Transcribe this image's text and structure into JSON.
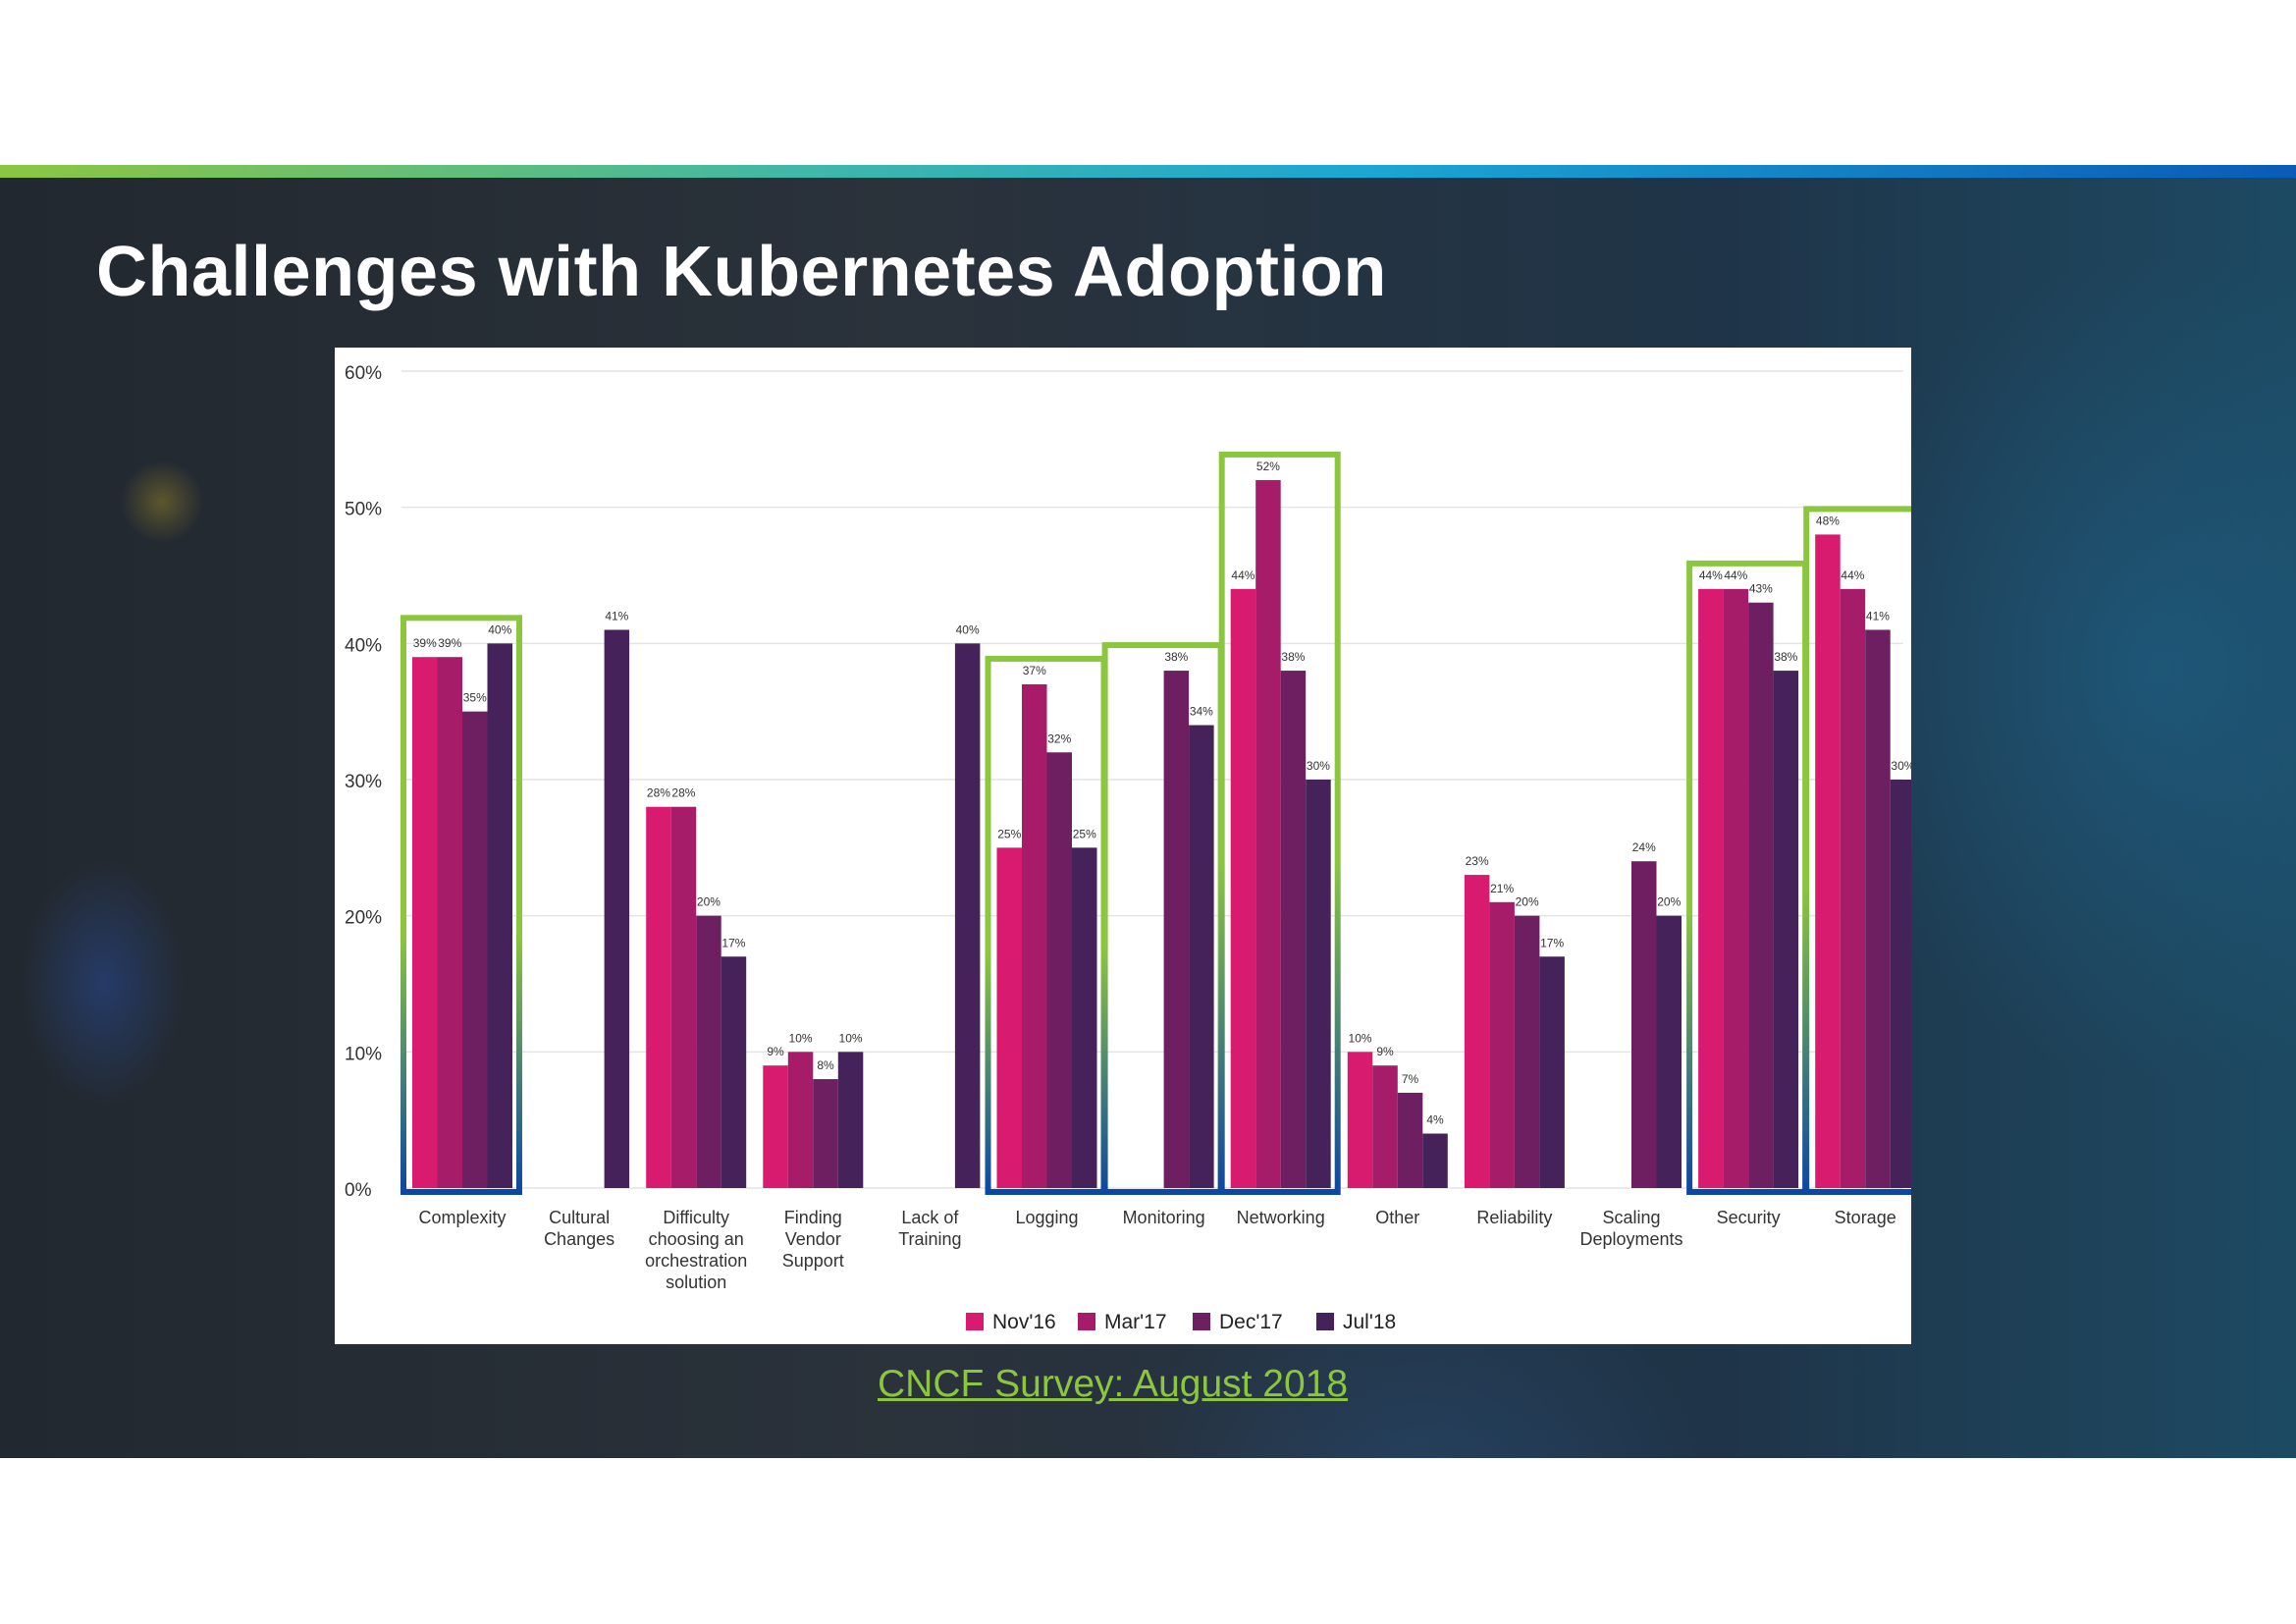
{
  "slide": {
    "title": "Challenges with Kubernetes Adoption",
    "source_link": "CNCF Survey: August 2018"
  },
  "colors": {
    "series": [
      "#d81b6e",
      "#a61c68",
      "#6d1f62",
      "#45225a"
    ],
    "highlight_green": "#8cc63f",
    "highlight_blue": "#0d47a1"
  },
  "chart_data": {
    "type": "bar",
    "title": "",
    "xlabel": "",
    "ylabel": "",
    "ylim": [
      0,
      60
    ],
    "yticks": [
      "0%",
      "10%",
      "20%",
      "30%",
      "40%",
      "50%",
      "60%"
    ],
    "grid": true,
    "legend_position": "bottom-center",
    "categories": [
      "Complexity",
      "Cultural Changes",
      "Difficulty choosing an orchestration solution",
      "Finding Vendor Support",
      "Lack of Training",
      "Logging",
      "Monitoring",
      "Networking",
      "Other",
      "Reliability",
      "Scaling Deployments",
      "Security",
      "Storage"
    ],
    "category_label_lines": [
      [
        "Complexity"
      ],
      [
        "Cultural",
        "Changes"
      ],
      [
        "Difficulty",
        "choosing an",
        "orchestration",
        "solution"
      ],
      [
        "Finding",
        "Vendor",
        "Support"
      ],
      [
        "Lack of",
        "Training"
      ],
      [
        "Logging"
      ],
      [
        "Monitoring"
      ],
      [
        "Networking"
      ],
      [
        "Other"
      ],
      [
        "Reliability"
      ],
      [
        "Scaling",
        "Deployments"
      ],
      [
        "Security"
      ],
      [
        "Storage"
      ]
    ],
    "series": [
      {
        "name": "Nov'16",
        "values": [
          39,
          null,
          28,
          9,
          null,
          25,
          null,
          44,
          10,
          23,
          null,
          44,
          48
        ]
      },
      {
        "name": "Mar'17",
        "values": [
          39,
          null,
          28,
          10,
          null,
          37,
          null,
          52,
          9,
          21,
          null,
          44,
          44
        ]
      },
      {
        "name": "Dec'17",
        "values": [
          35,
          null,
          20,
          8,
          null,
          32,
          38,
          38,
          7,
          20,
          24,
          43,
          41
        ]
      },
      {
        "name": "Jul'18",
        "values": [
          40,
          41,
          17,
          10,
          40,
          25,
          34,
          30,
          4,
          17,
          20,
          38,
          30
        ]
      }
    ],
    "highlighted_categories": [
      "Complexity",
      "Logging",
      "Monitoring",
      "Networking",
      "Security",
      "Storage"
    ]
  }
}
